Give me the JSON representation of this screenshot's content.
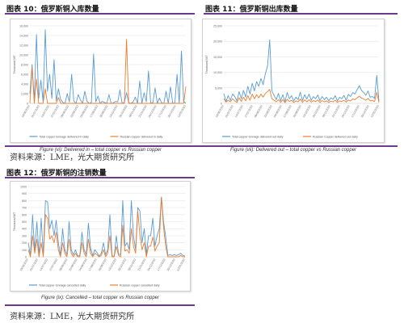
{
  "figures": [
    {
      "title": "图表 10：俄罗斯铜入库数量",
      "caption": "Figure (vi): Delivered in – total copper vs Russian copper"
    },
    {
      "title": "图表 11：俄罗斯铜出库数量",
      "caption": "Figure (vii): Delivered out – total copper vs Russian copper"
    },
    {
      "title": "图表 12：俄罗斯铜的注销数量",
      "caption": "Figure (ix): Cancelled – total copper vs Russian copper"
    }
  ],
  "sources": [
    "资料来源：LME，光大期货研究所",
    "资料来源：LME，光大期货研究所"
  ],
  "colors": {
    "total": "#5b9bd5",
    "russian": "#ed7d31",
    "rule": "#6b3a8c"
  },
  "chart_data": [
    {
      "type": "line",
      "ylabel": "Thousand MT",
      "ylim": [
        0,
        16000
      ],
      "yticks": [
        "0",
        "2,000",
        "4,000",
        "6,000",
        "8,000",
        "10,000",
        "12,000",
        "14,000",
        "16,000"
      ],
      "xticks": [
        "18/06/2022",
        "01/07/2022",
        "14/07/2022",
        "27/07/2022",
        "09/08/2022",
        "22/08/2022",
        "04/09/2022",
        "17/09/2022",
        "30/09/2022",
        "13/10/2022",
        "26/10/2022",
        "08/11/2022",
        "21/11/2022",
        "04/12/2022",
        "17/12/2022",
        "30/12/2022",
        "12/01/2023"
      ],
      "series": [
        {
          "name": "Total copper tonnage delivered in daily",
          "values": [
            2000,
            8000,
            600,
            14200,
            1000,
            4800,
            400,
            15200,
            2500,
            6000,
            1000,
            9000,
            500,
            3000,
            800,
            200,
            0,
            2000,
            300,
            6000,
            500,
            0,
            1800,
            700,
            0,
            2500,
            400,
            0,
            200,
            10200,
            300,
            1500,
            0,
            400,
            200,
            0,
            1800,
            0,
            100,
            400,
            300,
            2800,
            0,
            200,
            2200,
            100,
            0,
            300,
            1300,
            0,
            4600,
            0,
            2200,
            300,
            6700,
            0,
            200,
            3200,
            0,
            1100,
            100,
            0,
            2500,
            0,
            3400,
            100,
            0,
            6000,
            0,
            10800,
            400,
            0
          ]
        },
        {
          "name": "Russian copper delivered in daily",
          "values": [
            0,
            7500,
            0,
            5000,
            0,
            0,
            0,
            3000,
            0,
            0,
            0,
            0,
            0,
            1200,
            0,
            0,
            0,
            0,
            0,
            0,
            0,
            0,
            0,
            0,
            0,
            0,
            0,
            0,
            0,
            0,
            0,
            0,
            0,
            0,
            0,
            0,
            0,
            0,
            0,
            0,
            0,
            0,
            0,
            0,
            13200,
            0,
            0,
            0,
            0,
            0,
            0,
            0,
            0,
            0,
            0,
            0,
            0,
            0,
            0,
            0,
            0,
            0,
            0,
            0,
            0,
            0,
            0,
            0,
            0,
            0,
            0,
            3500
          ]
        }
      ]
    },
    {
      "type": "line",
      "ylabel": "Thousand MT",
      "ylim": [
        0,
        25000
      ],
      "yticks": [
        "0",
        "5,000",
        "10,000",
        "15,000",
        "20,000",
        "25,000"
      ],
      "xticks": [
        "18/06/2022",
        "01/07/2022",
        "14/07/2022",
        "27/07/2022",
        "09/08/2022",
        "22/08/2022",
        "04/09/2022",
        "17/09/2022",
        "30/09/2022",
        "13/10/2022",
        "26/10/2022",
        "08/11/2022",
        "21/11/2022",
        "04/12/2022",
        "17/12/2022",
        "30/12/2022",
        "12/01/2023"
      ],
      "series": [
        {
          "name": "Total copper tonnage delivered out daily",
          "values": [
            3200,
            600,
            2500,
            1000,
            3000,
            2200,
            800,
            3800,
            1500,
            4200,
            2000,
            5500,
            3000,
            6500,
            4000,
            7000,
            5500,
            8000,
            6000,
            9500,
            12000,
            20500,
            4000,
            2600,
            1200,
            3200,
            800,
            2800,
            600,
            3500,
            1500,
            2500,
            800,
            2000,
            1200,
            3600,
            900,
            2800,
            1400,
            3000,
            1000,
            2200,
            1500,
            2700,
            900,
            2200,
            1200,
            2000,
            800,
            1800,
            1300,
            2500,
            800,
            2000,
            1500,
            2600,
            1000,
            2900,
            2200,
            3500,
            3000,
            4400,
            5700,
            4200,
            3500,
            2600,
            4000,
            2000,
            2200,
            1600,
            9000,
            700
          ]
        },
        {
          "name": "Russian Copper delivered out daily",
          "values": [
            1500,
            400,
            1000,
            500,
            1500,
            800,
            300,
            1800,
            600,
            2000,
            800,
            2500,
            1000,
            3000,
            1500,
            2800,
            1800,
            3000,
            2000,
            3200,
            3800,
            4500,
            1500,
            1000,
            500,
            1200,
            300,
            1200,
            200,
            1300,
            600,
            1000,
            300,
            800,
            500,
            1400,
            300,
            1100,
            500,
            1200,
            400,
            900,
            600,
            1100,
            300,
            900,
            500,
            800,
            300,
            700,
            500,
            1000,
            300,
            800,
            600,
            1000,
            400,
            1100,
            800,
            1400,
            1200,
            1800,
            2300,
            1700,
            1400,
            1000,
            1600,
            800,
            900,
            600,
            3600,
            300
          ]
        }
      ]
    },
    {
      "type": "line",
      "ylabel": "Thousand MT",
      "ylim": [
        0,
        1000
      ],
      "yticks": [
        "0",
        "100",
        "200",
        "300",
        "400",
        "500",
        "600",
        "700",
        "800",
        "900",
        "1000"
      ],
      "xticks": [
        "18/06/2022",
        "01/07/2022",
        "14/07/2022",
        "27/07/2022",
        "09/08/2022",
        "22/08/2022",
        "04/09/2022",
        "17/09/2022",
        "30/09/2022",
        "13/10/2022",
        "26/10/2022",
        "08/11/2022",
        "21/11/2022",
        "04/12/2022",
        "17/12/2022",
        "30/12/2022",
        "12/01/2023"
      ],
      "series": [
        {
          "name": "Total copper tonnage cancelled daily",
          "values": [
            200,
            20,
            600,
            80,
            500,
            20,
            550,
            30,
            800,
            780,
            400,
            520,
            300,
            520,
            200,
            20,
            400,
            100,
            30,
            500,
            100,
            30,
            100,
            10,
            20,
            350,
            100,
            30,
            480,
            120,
            20,
            100,
            60,
            10,
            50,
            200,
            30,
            100,
            600,
            20,
            0,
            300,
            40,
            30,
            800,
            150,
            200,
            100,
            800,
            300,
            100,
            700,
            650,
            200,
            400,
            40,
            300,
            300,
            550,
            150,
            300,
            400,
            850,
            500,
            280,
            20,
            30,
            20,
            30,
            20,
            30,
            50,
            20,
            10
          ]
        },
        {
          "name": "Russian copper cancelled daily",
          "values": [
            100,
            0,
            300,
            50,
            250,
            0,
            200,
            0,
            600,
            550,
            250,
            300,
            200,
            350,
            100,
            0,
            200,
            50,
            0,
            250,
            50,
            0,
            50,
            0,
            0,
            200,
            50,
            0,
            250,
            50,
            0,
            50,
            30,
            0,
            20,
            100,
            0,
            50,
            300,
            0,
            0,
            150,
            20,
            0,
            450,
            80,
            100,
            50,
            400,
            150,
            50,
            650,
            300,
            100,
            200,
            0,
            150,
            150,
            280,
            80,
            150,
            200,
            850,
            420,
            150,
            0,
            0,
            0,
            0,
            0,
            0,
            20,
            0,
            0
          ]
        }
      ]
    }
  ]
}
